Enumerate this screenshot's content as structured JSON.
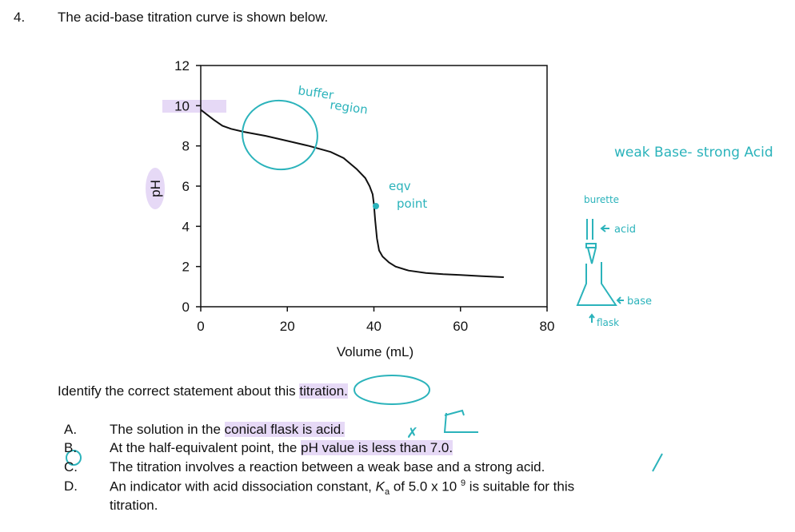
{
  "question": {
    "number": "4.",
    "stem": "The acid-base titration curve is shown below.",
    "prompt_before": "Identify the correct statement about this",
    "prompt_highlight": "titration.",
    "options": [
      {
        "letter": "A.",
        "text_before": "The solution in the ",
        "highlight": "conical flask is acid.",
        "text_after": ""
      },
      {
        "letter": "B.",
        "text_before": "At the half-equivalent point, the ",
        "highlight": "pH value is less than 7.0.",
        "text_after": ""
      },
      {
        "letter": "C.",
        "text_before": "The titration involves a reaction between a weak base and a strong acid.",
        "highlight": "",
        "text_after": ""
      },
      {
        "letter": "D.",
        "text_before": "An indicator with acid dissociation constant, ",
        "ka_symbol": "K",
        "ka_sub": "a",
        "text_mid": " of 5.0 x 10 ",
        "exponent": "9",
        "text_after": " is suitable for this",
        "continuation": "titration."
      }
    ],
    "selected_option": "C"
  },
  "chart_data": {
    "type": "line",
    "xlabel": "Volume (mL)",
    "ylabel": "pH",
    "xlim": [
      0,
      80
    ],
    "ylim": [
      0,
      12
    ],
    "xticks": [
      "0",
      "20",
      "40",
      "60",
      "80"
    ],
    "yticks": [
      "0",
      "2",
      "4",
      "6",
      "8",
      "10",
      "12"
    ],
    "grid": false,
    "x": [
      0,
      3,
      5,
      7,
      10,
      15,
      20,
      25,
      30,
      33,
      36,
      38,
      39,
      39.7,
      40,
      40.3,
      40.7,
      41.2,
      42,
      43.5,
      45,
      48,
      52,
      56,
      60,
      65,
      70
    ],
    "y": [
      9.8,
      9.3,
      9.0,
      8.85,
      8.7,
      8.5,
      8.25,
      8.0,
      7.7,
      7.4,
      6.85,
      6.4,
      6.0,
      5.6,
      5.1,
      4.3,
      3.4,
      2.8,
      2.5,
      2.2,
      2.0,
      1.8,
      1.68,
      1.62,
      1.58,
      1.52,
      1.47
    ]
  },
  "annotations": {
    "buffer_line1": "buffer",
    "buffer_line2": "region",
    "eqv_line1": "eqv",
    "eqv_line2": "point",
    "title_note": "weak Base- strong Acid",
    "burette": "burette",
    "acid": "acid",
    "base": "base",
    "flask": "flask",
    "mark_a": "✗",
    "mark_c": "/",
    "color_ink": "#2bb3bb",
    "color_highlight": "#e6d9f6"
  }
}
